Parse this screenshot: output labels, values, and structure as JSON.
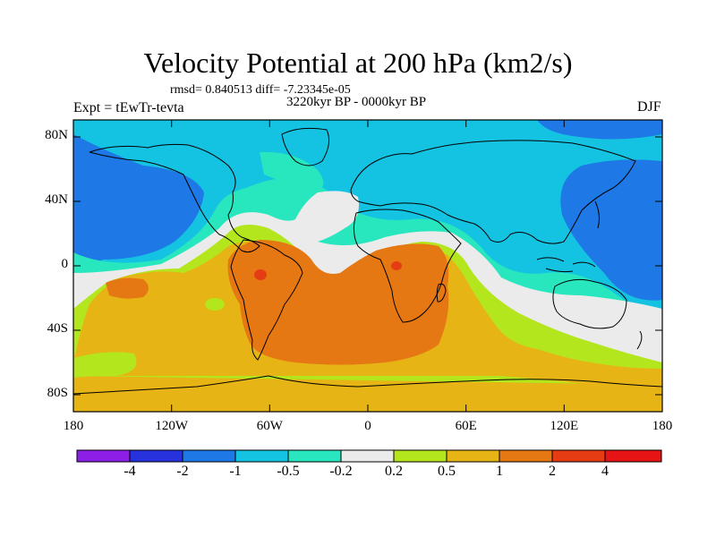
{
  "title": "Velocity Potential at 200 hPa (km2/s)",
  "stats": "rmsd= 0.840513 diff= -7.23345e-05",
  "period": "3220kyr BP - 0000kyr BP",
  "experiment": "Expt = tEwTr-tevta",
  "season": "DJF",
  "axes": {
    "y_ticks": [
      "80N",
      "40N",
      "0",
      "40S",
      "80S"
    ],
    "x_ticks": [
      "180",
      "120W",
      "60W",
      "0",
      "60E",
      "120E",
      "180"
    ]
  },
  "colorbar": {
    "labels": [
      "-4",
      "-2",
      "-1",
      "-0.5",
      "-0.2",
      "0.2",
      "0.5",
      "1",
      "2",
      "4"
    ],
    "colors": [
      "#8c1ee6",
      "#2832dc",
      "#1e78e6",
      "#14c3e1",
      "#28e6be",
      "#ebebeb",
      "#b4e61e",
      "#e6b414",
      "#e67814",
      "#e63c14",
      "#e61414"
    ]
  }
}
